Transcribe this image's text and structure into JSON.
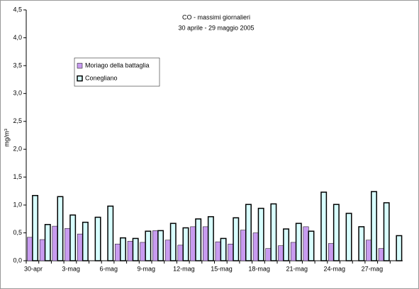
{
  "chart_data": {
    "type": "bar",
    "title": "CO - massimi giornalieri",
    "subtitle": "30 aprile - 29 maggio 2005",
    "y_label": "mg/m³",
    "categories": [
      "30-apr",
      null,
      null,
      "3-mag",
      null,
      null,
      "6-mag",
      null,
      null,
      "9-mag",
      null,
      null,
      "12-mag",
      null,
      null,
      "15-mag",
      null,
      null,
      "18-mag",
      null,
      null,
      "21-mag",
      null,
      null,
      "24-mag",
      null,
      null,
      "27-mag",
      null,
      null
    ],
    "series": [
      {
        "name": "Moriago della battaglia",
        "color": "#c89bf0",
        "values": [
          0.42,
          0.38,
          0.62,
          0.58,
          0.48,
          null,
          null,
          0.3,
          0.35,
          0.33,
          0.54,
          0.37,
          0.28,
          0.61,
          0.61,
          0.34,
          0.3,
          0.55,
          0.5,
          0.22,
          0.27,
          0.33,
          0.61,
          null,
          0.31,
          null,
          null,
          0.37,
          0.22,
          null
        ]
      },
      {
        "name": "Conegliano",
        "color": "#d8ffff",
        "values": [
          1.17,
          0.65,
          1.15,
          0.82,
          0.69,
          0.78,
          0.98,
          0.41,
          0.4,
          0.53,
          0.54,
          0.67,
          0.59,
          0.75,
          0.79,
          0.4,
          0.77,
          1.01,
          0.94,
          1.02,
          0.57,
          0.67,
          0.53,
          1.23,
          1.01,
          0.85,
          0.61,
          1.24,
          1.04,
          0.45
        ]
      }
    ],
    "ylim": [
      0,
      4.5
    ],
    "yticks": [
      {
        "value": 0,
        "label": "0,0"
      },
      {
        "value": 0.5,
        "label": "0,5"
      },
      {
        "value": 1,
        "label": "1,0"
      },
      {
        "value": 1.5,
        "label": "1,5"
      },
      {
        "value": 2,
        "label": "2,0"
      },
      {
        "value": 2.5,
        "label": "2,5"
      },
      {
        "value": 3,
        "label": "3,0"
      },
      {
        "value": 3.5,
        "label": "3,5"
      },
      {
        "value": 4,
        "label": "4,0"
      },
      {
        "value": 4.5,
        "label": "4,5"
      }
    ],
    "legend": "upper left"
  }
}
